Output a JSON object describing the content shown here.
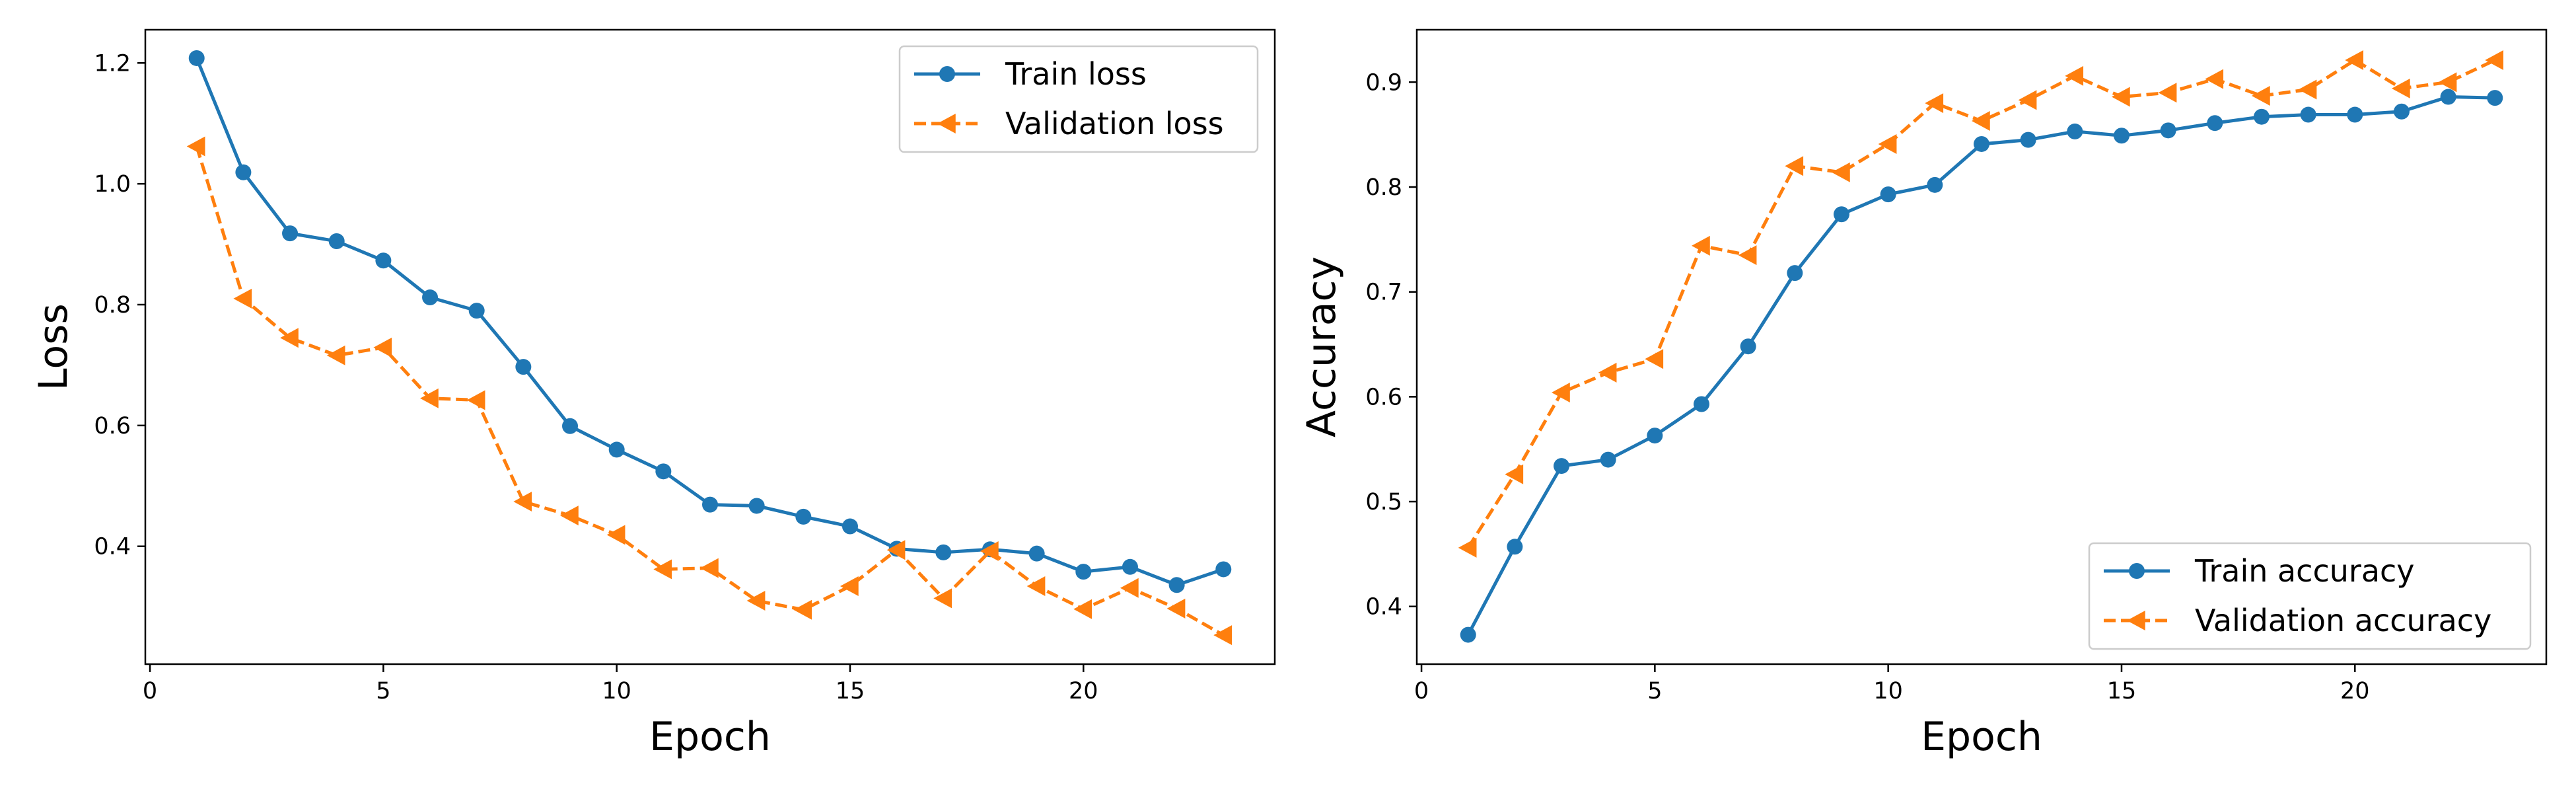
{
  "colors": {
    "train": "#1f77b4",
    "validation": "#ff7f0e"
  },
  "chart_data": [
    {
      "type": "line",
      "xlabel": "Epoch",
      "ylabel": "Loss",
      "xlim": [
        -0.1,
        24.1
      ],
      "ylim": [
        0.205,
        1.255
      ],
      "xticks": [
        0,
        5,
        10,
        15,
        20
      ],
      "yticks": [
        0.4,
        0.6,
        0.8,
        1.0,
        1.2
      ],
      "grid": false,
      "legend_position": "top-right",
      "x": [
        1,
        2,
        3,
        4,
        5,
        6,
        7,
        8,
        9,
        10,
        11,
        12,
        13,
        14,
        15,
        16,
        17,
        18,
        19,
        20,
        21,
        22,
        23
      ],
      "series": [
        {
          "name": "Train loss",
          "marker": "circle",
          "line": "solid",
          "values": [
            1.208,
            1.019,
            0.918,
            0.905,
            0.873,
            0.812,
            0.79,
            0.697,
            0.599,
            0.56,
            0.524,
            0.469,
            0.467,
            0.449,
            0.433,
            0.396,
            0.39,
            0.395,
            0.388,
            0.358,
            0.366,
            0.336,
            0.362
          ]
        },
        {
          "name": "Validation loss",
          "marker": "triangle-left",
          "line": "dashed",
          "values": [
            1.062,
            0.81,
            0.745,
            0.716,
            0.729,
            0.645,
            0.642,
            0.474,
            0.451,
            0.419,
            0.362,
            0.364,
            0.31,
            0.295,
            0.334,
            0.394,
            0.314,
            0.392,
            0.334,
            0.296,
            0.331,
            0.297,
            0.253
          ]
        }
      ]
    },
    {
      "type": "line",
      "xlabel": "Epoch",
      "ylabel": "Accuracy",
      "xlim": [
        -0.1,
        24.1
      ],
      "ylim": [
        0.345,
        0.95
      ],
      "xticks": [
        0,
        5,
        10,
        15,
        20
      ],
      "yticks": [
        0.4,
        0.5,
        0.6,
        0.7,
        0.8,
        0.9
      ],
      "grid": false,
      "legend_position": "bottom-right",
      "x": [
        1,
        2,
        3,
        4,
        5,
        6,
        7,
        8,
        9,
        10,
        11,
        12,
        13,
        14,
        15,
        16,
        17,
        18,
        19,
        20,
        21,
        22,
        23
      ],
      "series": [
        {
          "name": "Train accuracy",
          "marker": "circle",
          "line": "solid",
          "values": [
            0.373,
            0.457,
            0.534,
            0.54,
            0.563,
            0.593,
            0.648,
            0.718,
            0.774,
            0.793,
            0.802,
            0.841,
            0.845,
            0.853,
            0.849,
            0.854,
            0.861,
            0.867,
            0.869,
            0.869,
            0.872,
            0.886,
            0.885
          ]
        },
        {
          "name": "Validation accuracy",
          "marker": "triangle-left",
          "line": "dashed",
          "values": [
            0.456,
            0.526,
            0.604,
            0.623,
            0.636,
            0.744,
            0.735,
            0.82,
            0.814,
            0.841,
            0.88,
            0.863,
            0.883,
            0.906,
            0.886,
            0.89,
            0.903,
            0.887,
            0.893,
            0.921,
            0.894,
            0.9,
            0.921
          ]
        }
      ]
    }
  ]
}
